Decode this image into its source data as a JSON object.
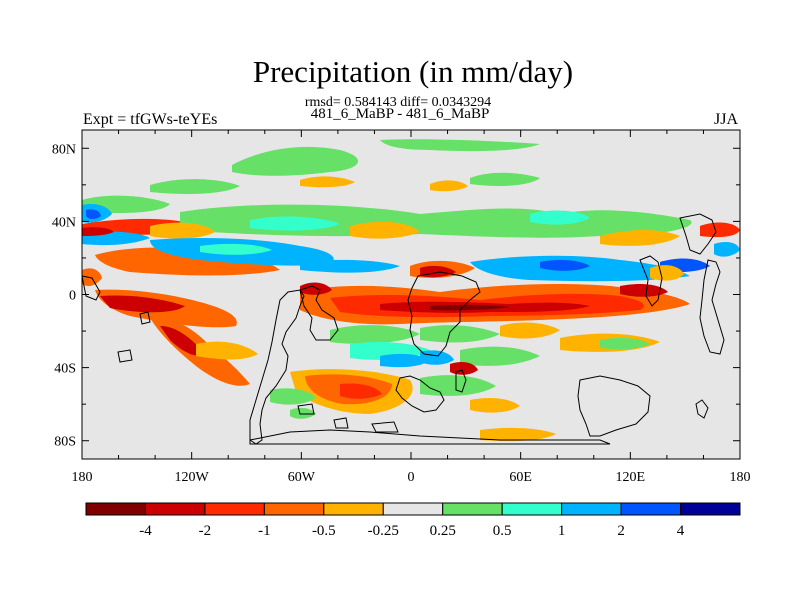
{
  "title": "Precipitation (in mm/day)",
  "stats": "rmsd= 0.584143 diff= 0.0343294",
  "cases": "481_6_MaBP - 481_6_MaBP",
  "expt": "Expt = tfGWs-teYEs",
  "season": "JJA",
  "axes": {
    "x_ticks": [
      "180",
      "120W",
      "60W",
      "0",
      "60E",
      "120E",
      "180"
    ],
    "y_ticks": [
      "80N",
      "40N",
      "0",
      "40S",
      "80S"
    ],
    "x_values": [
      -180,
      -120,
      -60,
      0,
      60,
      120,
      180
    ],
    "y_values": [
      80,
      40,
      0,
      -40,
      -80
    ],
    "xlim": [
      -180,
      180
    ],
    "ylim": [
      -90,
      90
    ]
  },
  "colorbar": {
    "labels": [
      "-4",
      "-2",
      "-1",
      "-0.5",
      "-0.25",
      "0.25",
      "0.5",
      "1",
      "2",
      "4"
    ],
    "colors": [
      "#800000",
      "#cc0000",
      "#ff2a00",
      "#ff6600",
      "#ffb300",
      "#e6e6e6",
      "#66e066",
      "#33ffcc",
      "#00b3ff",
      "#0055ff",
      "#000099"
    ]
  }
}
